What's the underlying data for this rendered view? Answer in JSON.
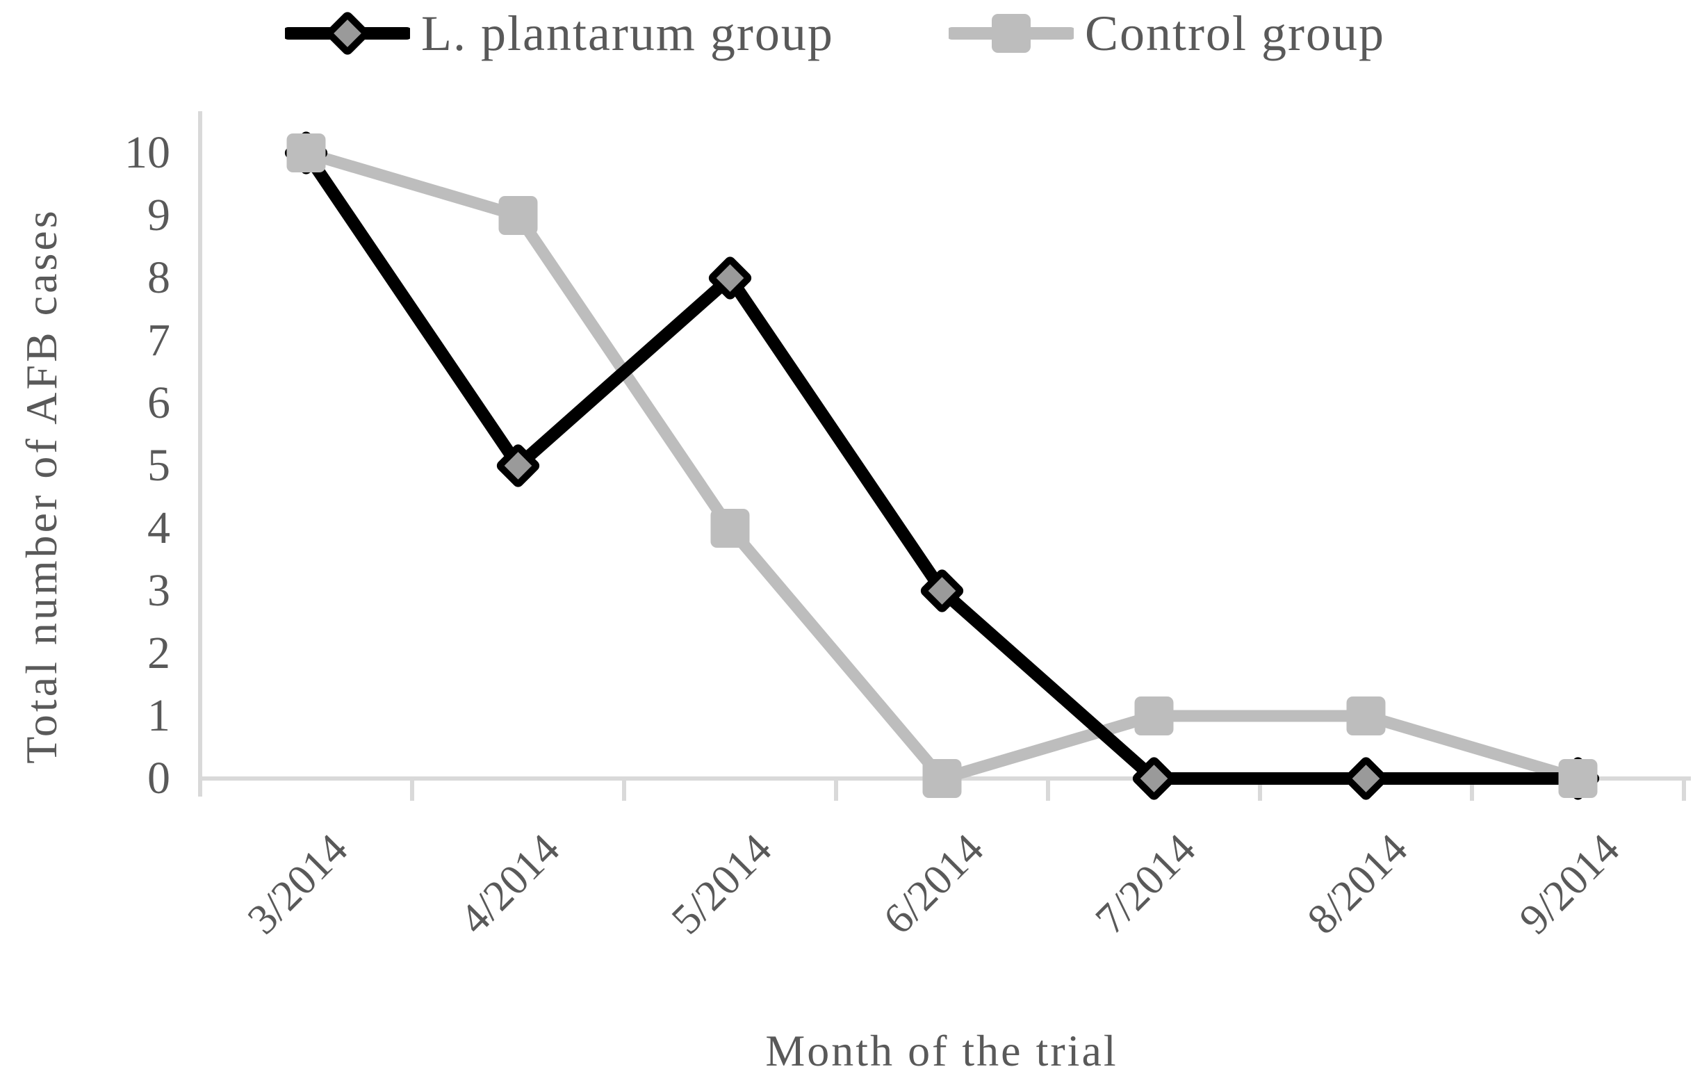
{
  "figure": {
    "legend": [
      {
        "label": "L. plantarum group",
        "marker": "diamond"
      },
      {
        "label": "Control group",
        "marker": "square"
      }
    ],
    "y_axis_title": "Total number of AFB cases",
    "x_axis_title": "Month of the trial"
  },
  "colors": {
    "plantarum_line": "#000000",
    "plantarum_marker_fill": "#9a9a9a",
    "control_line": "#bdbdbd",
    "control_marker_fill": "#bdbdbd",
    "axis_line": "#d9d9d9",
    "text": "#595959"
  },
  "chart_data": {
    "type": "line",
    "categories": [
      "3/2014",
      "4/2014",
      "5/2014",
      "6/2014",
      "7/2014",
      "8/2014",
      "9/2014"
    ],
    "series": [
      {
        "name": "L. plantarum group",
        "values": [
          10,
          5,
          8,
          3,
          0,
          0,
          0
        ],
        "color": "#000000",
        "marker": "diamond",
        "marker_fill": "#9a9a9a"
      },
      {
        "name": "Control group",
        "values": [
          10,
          9,
          4,
          0,
          1,
          1,
          0
        ],
        "color": "#bdbdbd",
        "marker": "square",
        "marker_fill": "#bdbdbd"
      }
    ],
    "title": "",
    "xlabel": "Month of the trial",
    "ylabel": "Total number of AFB cases",
    "ylim": [
      0,
      10
    ],
    "yticks": [
      0,
      1,
      2,
      3,
      4,
      5,
      6,
      7,
      8,
      9,
      10
    ],
    "grid": false,
    "legend_position": "top"
  }
}
